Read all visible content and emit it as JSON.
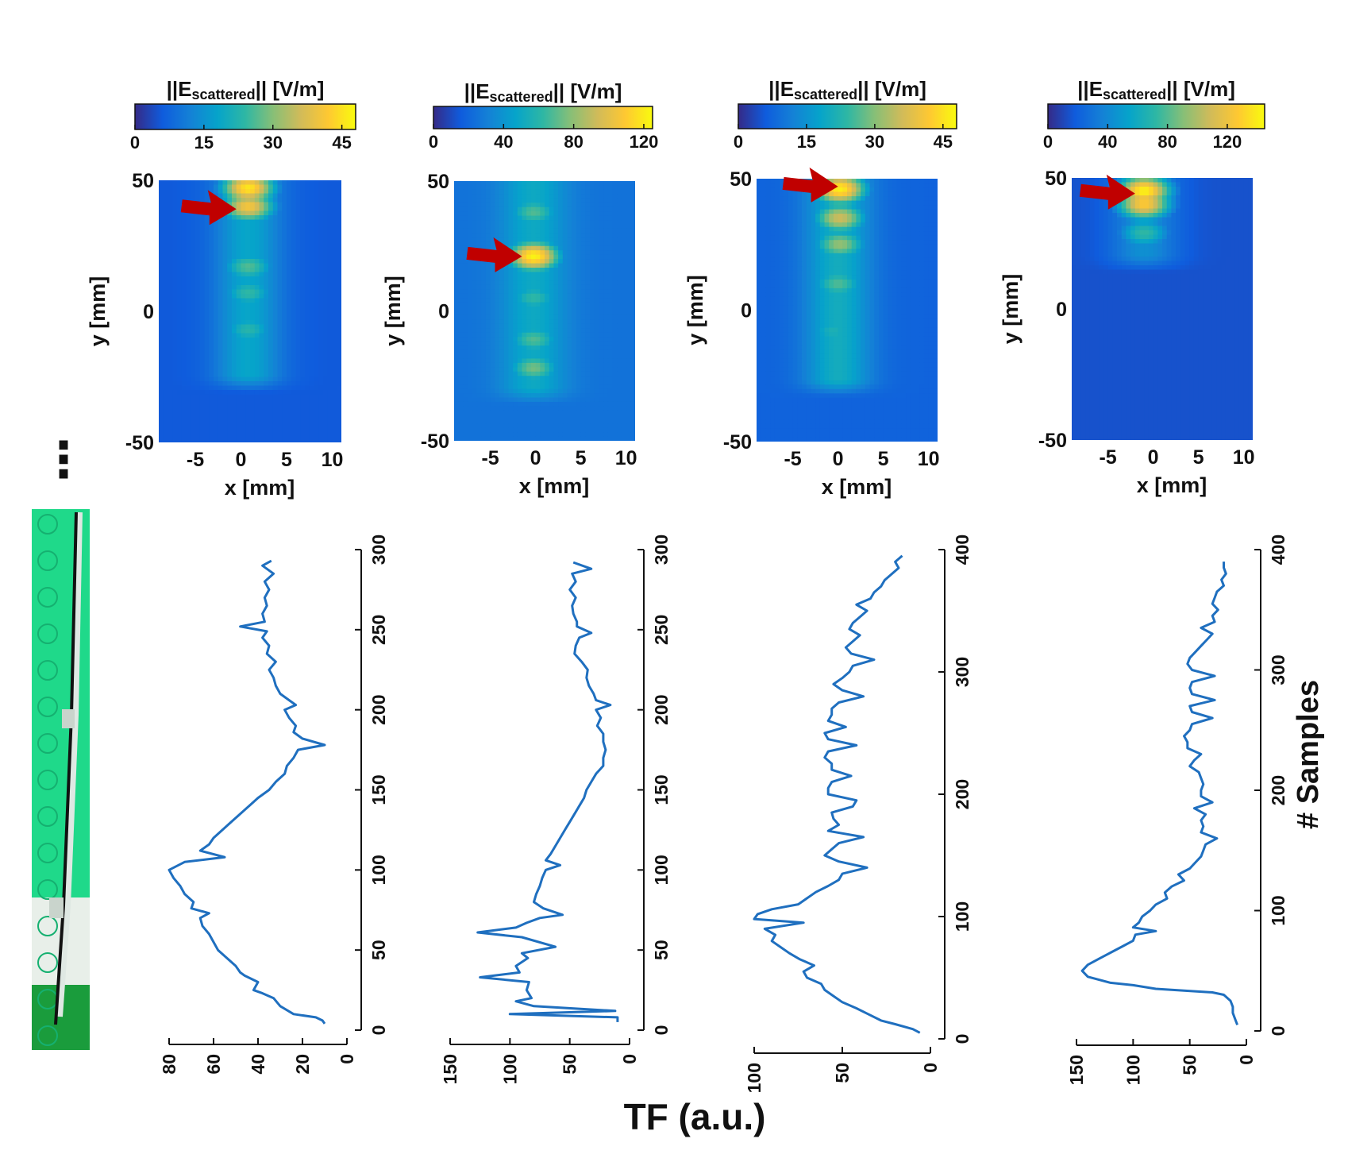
{
  "figure": {
    "shared_x_label": "TF (a.u.)",
    "shared_y_label": "# Samples",
    "ellipsis": "⋮"
  },
  "colors": {
    "line": "#1f6fbf",
    "arrow": "#c00000",
    "axis": "#111111",
    "parula": [
      "#352a87",
      "#0f5cdd",
      "#1481d6",
      "#06a4ca",
      "#2eb7a4",
      "#87bf77",
      "#d1bb59",
      "#fec832",
      "#f9fb0e"
    ]
  },
  "chart_data": [
    {
      "type": "heatmap",
      "colorbar_title": "||E",
      "colorbar_sub": "scattered",
      "colorbar_unit": "|| [V/m]",
      "colorbar_ticks": [
        "0",
        "15",
        "30",
        "45"
      ],
      "colorbar_max": 48,
      "xlabel": "x [mm]",
      "ylabel": "y [mm]",
      "x_ticks": [
        "-5",
        "0",
        "5",
        "10"
      ],
      "y_ticks": [
        "50",
        "0",
        "-50"
      ],
      "xlim": [
        -9,
        11
      ],
      "ylim": [
        -50,
        50
      ],
      "column_center_x": 0.8,
      "column_top_y": 50,
      "column_bottom_y": -25,
      "background_level": 0.12,
      "column_level": 0.38,
      "hotspots": [
        {
          "x": 0.8,
          "y": 47,
          "level": 0.95
        },
        {
          "x": 0.8,
          "y": 40,
          "level": 0.85
        },
        {
          "x": 0.8,
          "y": 17,
          "level": 0.55
        },
        {
          "x": 0.8,
          "y": 7,
          "level": 0.5
        },
        {
          "x": 0.8,
          "y": -7,
          "level": 0.48
        }
      ],
      "arrow_target": {
        "x": -0.5,
        "y": 39
      }
    },
    {
      "type": "heatmap",
      "colorbar_title": "||E",
      "colorbar_sub": "scattered",
      "colorbar_unit": "|| [V/m]",
      "colorbar_ticks": [
        "0",
        "40",
        "80",
        "120"
      ],
      "colorbar_max": 125,
      "xlabel": "x [mm]",
      "ylabel": "y [mm]",
      "x_ticks": [
        "-5",
        "0",
        "5",
        "10"
      ],
      "y_ticks": [
        "50",
        "0",
        "-50"
      ],
      "xlim": [
        -9,
        11
      ],
      "ylim": [
        -50,
        50
      ],
      "column_center_x": -0.2,
      "column_top_y": 48,
      "column_bottom_y": -30,
      "background_level": 0.2,
      "column_level": 0.4,
      "hotspots": [
        {
          "x": -0.2,
          "y": 21,
          "level": 0.98
        },
        {
          "x": -0.2,
          "y": 38,
          "level": 0.55
        },
        {
          "x": -0.2,
          "y": 5,
          "level": 0.5
        },
        {
          "x": -0.2,
          "y": -11,
          "level": 0.55
        },
        {
          "x": -0.2,
          "y": -22,
          "level": 0.6
        }
      ],
      "arrow_target": {
        "x": -1.5,
        "y": 21
      }
    },
    {
      "type": "heatmap",
      "colorbar_title": "||E",
      "colorbar_sub": "scattered",
      "colorbar_unit": "|| [V/m]",
      "colorbar_ticks": [
        "0",
        "15",
        "30",
        "45"
      ],
      "colorbar_max": 48,
      "xlabel": "x [mm]",
      "ylabel": "y [mm]",
      "x_ticks": [
        "-5",
        "0",
        "5",
        "10"
      ],
      "y_ticks": [
        "50",
        "0",
        "-50"
      ],
      "xlim": [
        -9,
        11
      ],
      "ylim": [
        -50,
        50
      ],
      "column_center_x": 0.0,
      "column_top_y": 50,
      "column_bottom_y": -27,
      "background_level": 0.15,
      "column_level": 0.42,
      "hotspots": [
        {
          "x": 0.2,
          "y": 46,
          "level": 0.97
        },
        {
          "x": 0.2,
          "y": 35,
          "level": 0.75
        },
        {
          "x": 0.2,
          "y": 25,
          "level": 0.65
        },
        {
          "x": 0.0,
          "y": 10,
          "level": 0.55
        },
        {
          "x": -0.5,
          "y": -8,
          "level": 0.45
        }
      ],
      "arrow_target": {
        "x": 0.0,
        "y": 47
      }
    },
    {
      "type": "heatmap",
      "colorbar_title": "||E",
      "colorbar_sub": "scattered",
      "colorbar_unit": "|| [V/m]",
      "colorbar_ticks": [
        "0",
        "40",
        "80",
        "120"
      ],
      "colorbar_max": 145,
      "xlabel": "x [mm]",
      "ylabel": "y [mm]",
      "x_ticks": [
        "-5",
        "0",
        "5",
        "10"
      ],
      "y_ticks": [
        "50",
        "0",
        "-50"
      ],
      "xlim": [
        -9,
        11
      ],
      "ylim": [
        -50,
        50
      ],
      "column_center_x": -1.0,
      "column_top_y": 50,
      "column_bottom_y": 20,
      "background_level": 0.1,
      "column_level": 0.3,
      "hotspots": [
        {
          "x": -1.0,
          "y": 45,
          "level": 0.98
        },
        {
          "x": -1.0,
          "y": 40,
          "level": 0.88
        },
        {
          "x": -1.0,
          "y": 29,
          "level": 0.5
        }
      ],
      "arrow_target": {
        "x": -2.0,
        "y": 44
      }
    },
    {
      "type": "line",
      "xlabel": "TF (a.u.)",
      "ylabel": "# Samples",
      "tf_range": [
        0,
        80
      ],
      "tf_ticks": [
        0,
        20,
        40,
        60,
        80
      ],
      "samples_range": [
        0,
        300
      ],
      "samples_ticks": [
        0,
        50,
        100,
        150,
        200,
        250,
        300
      ],
      "samples": [
        4,
        6,
        8,
        10,
        15,
        20,
        23,
        25,
        30,
        34,
        36,
        40,
        45,
        50,
        55,
        60,
        65,
        70,
        73,
        76,
        80,
        85,
        90,
        95,
        100,
        105,
        108,
        112,
        116,
        120,
        125,
        130,
        135,
        140,
        145,
        150,
        155,
        160,
        165,
        170,
        175,
        178,
        182,
        186,
        190,
        195,
        200,
        203,
        206,
        210,
        215,
        220,
        225,
        230,
        235,
        240,
        245,
        249,
        252,
        255,
        260,
        265,
        270,
        275,
        280,
        285,
        290,
        293
      ],
      "tf": [
        10,
        11,
        14,
        24,
        30,
        33,
        38,
        42,
        40,
        46,
        48,
        50,
        54,
        58,
        60,
        62,
        65,
        66,
        62,
        70,
        69,
        73,
        75,
        78,
        80,
        73,
        55,
        66,
        62,
        60,
        56,
        52,
        48,
        44,
        40,
        35,
        32,
        28,
        27,
        24,
        22,
        10,
        20,
        24,
        23,
        26,
        28,
        23,
        26,
        30,
        32,
        33,
        35,
        32,
        36,
        35,
        38,
        36,
        48,
        37,
        38,
        36,
        37,
        35,
        37,
        33,
        38,
        34
      ]
    },
    {
      "type": "line",
      "xlabel": "TF (a.u.)",
      "ylabel": "# Samples",
      "tf_range": [
        0,
        150
      ],
      "tf_ticks": [
        0,
        50,
        100,
        150
      ],
      "samples_range": [
        0,
        300
      ],
      "samples_ticks": [
        0,
        50,
        100,
        150,
        200,
        250,
        300
      ],
      "samples": [
        5,
        8,
        10,
        12,
        15,
        18,
        20,
        25,
        30,
        33,
        36,
        40,
        45,
        48,
        52,
        58,
        61,
        64,
        67,
        70,
        72,
        76,
        80,
        85,
        90,
        95,
        100,
        103,
        106,
        110,
        115,
        120,
        125,
        130,
        135,
        140,
        145,
        150,
        155,
        160,
        165,
        170,
        175,
        180,
        185,
        190,
        195,
        200,
        203,
        206,
        210,
        215,
        220,
        225,
        230,
        235,
        240,
        245,
        248,
        252,
        255,
        260,
        265,
        270,
        275,
        280,
        285,
        288,
        292
      ],
      "tf": [
        10,
        10,
        100,
        12,
        80,
        95,
        82,
        86,
        84,
        125,
        92,
        95,
        85,
        90,
        62,
        90,
        127,
        95,
        86,
        75,
        56,
        72,
        80,
        78,
        75,
        73,
        70,
        58,
        70,
        66,
        62,
        58,
        54,
        50,
        46,
        42,
        38,
        36,
        32,
        28,
        22,
        22,
        20,
        22,
        22,
        27,
        24,
        28,
        16,
        28,
        30,
        34,
        36,
        35,
        40,
        46,
        45,
        42,
        32,
        44,
        44,
        47,
        48,
        45,
        50,
        45,
        48,
        32,
        47
      ]
    },
    {
      "type": "line",
      "xlabel": "TF (a.u.)",
      "ylabel": "# Samples",
      "tf_range": [
        0,
        100
      ],
      "tf_ticks": [
        0,
        50,
        100
      ],
      "samples_range": [
        0,
        400
      ],
      "samples_ticks": [
        0,
        100,
        200,
        300,
        400
      ],
      "samples": [
        5,
        8,
        12,
        15,
        20,
        25,
        30,
        35,
        40,
        45,
        50,
        55,
        60,
        65,
        70,
        75,
        80,
        85,
        90,
        95,
        98,
        102,
        106,
        110,
        115,
        120,
        125,
        130,
        135,
        140,
        145,
        150,
        155,
        160,
        165,
        170,
        175,
        180,
        185,
        190,
        195,
        200,
        205,
        210,
        215,
        220,
        225,
        230,
        235,
        240,
        245,
        250,
        255,
        260,
        265,
        270,
        275,
        280,
        285,
        290,
        295,
        300,
        305,
        310,
        315,
        320,
        325,
        330,
        335,
        340,
        345,
        350,
        355,
        360,
        365,
        370,
        375,
        380,
        385,
        390,
        395
      ],
      "tf": [
        6,
        10,
        20,
        28,
        35,
        42,
        50,
        55,
        60,
        62,
        70,
        72,
        66,
        74,
        80,
        85,
        90,
        88,
        94,
        72,
        100,
        98,
        90,
        75,
        70,
        65,
        58,
        52,
        50,
        36,
        52,
        60,
        56,
        52,
        38,
        58,
        52,
        55,
        56,
        44,
        42,
        58,
        58,
        56,
        45,
        56,
        56,
        60,
        58,
        42,
        58,
        60,
        48,
        58,
        56,
        56,
        52,
        38,
        50,
        55,
        50,
        46,
        44,
        32,
        45,
        48,
        44,
        40,
        46,
        44,
        40,
        36,
        42,
        34,
        32,
        28,
        26,
        22,
        18,
        20,
        16
      ]
    },
    {
      "type": "line",
      "xlabel": "TF (a.u.)",
      "ylabel": "# Samples",
      "tf_range": [
        0,
        150
      ],
      "tf_ticks": [
        0,
        50,
        100,
        150
      ],
      "samples_range": [
        0,
        400
      ],
      "samples_ticks": [
        0,
        100,
        200,
        300,
        400
      ],
      "samples": [
        5,
        10,
        15,
        20,
        25,
        30,
        32,
        35,
        38,
        40,
        45,
        50,
        55,
        60,
        65,
        70,
        75,
        80,
        83,
        86,
        90,
        95,
        100,
        105,
        110,
        115,
        120,
        125,
        130,
        135,
        140,
        145,
        150,
        155,
        160,
        165,
        170,
        175,
        180,
        185,
        190,
        195,
        200,
        205,
        210,
        215,
        220,
        225,
        230,
        235,
        240,
        245,
        250,
        255,
        260,
        265,
        270,
        275,
        280,
        285,
        290,
        295,
        300,
        305,
        310,
        315,
        320,
        325,
        330,
        335,
        340,
        345,
        350,
        355,
        360,
        365,
        370,
        375,
        380,
        385,
        390
      ],
      "tf": [
        8,
        10,
        12,
        12,
        14,
        20,
        30,
        80,
        100,
        120,
        140,
        145,
        140,
        130,
        120,
        110,
        100,
        98,
        80,
        100,
        95,
        92,
        85,
        80,
        70,
        72,
        66,
        55,
        60,
        50,
        45,
        40,
        38,
        36,
        26,
        40,
        38,
        40,
        36,
        46,
        30,
        40,
        40,
        38,
        40,
        42,
        50,
        46,
        40,
        52,
        52,
        55,
        50,
        48,
        30,
        48,
        50,
        28,
        48,
        50,
        48,
        28,
        48,
        52,
        50,
        45,
        40,
        35,
        30,
        40,
        28,
        30,
        25,
        30,
        28,
        26,
        20,
        22,
        18,
        20,
        20
      ]
    }
  ]
}
